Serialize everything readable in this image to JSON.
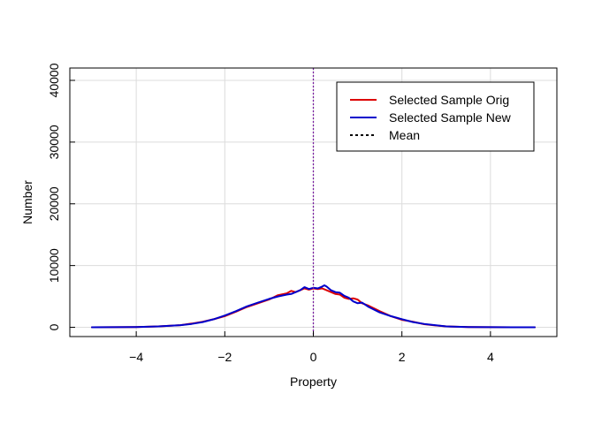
{
  "chart_data": {
    "type": "line",
    "title": "",
    "xlabel": "Property",
    "ylabel": "Number",
    "xlim": [
      -5.5,
      5.5
    ],
    "ylim": [
      -1500,
      42000
    ],
    "x_ticks": [
      -4,
      -2,
      0,
      2,
      4
    ],
    "y_ticks": [
      0,
      10000,
      20000,
      30000,
      40000
    ],
    "x_tick_labels": [
      "−4",
      "−2",
      "0",
      "2",
      "4"
    ],
    "y_tick_labels": [
      "0",
      "10000",
      "20000",
      "30000",
      "40000"
    ],
    "grid": true,
    "legend_position": "top-right",
    "series": [
      {
        "name": "Selected Sample Orig",
        "color": "#dd0000",
        "style": "solid",
        "x": [
          -5,
          -4.5,
          -4,
          -3.5,
          -3,
          -2.75,
          -2.5,
          -2.25,
          -2,
          -1.75,
          -1.5,
          -1.25,
          -1,
          -0.8,
          -0.6,
          -0.5,
          -0.4,
          -0.3,
          -0.2,
          -0.1,
          0,
          0.1,
          0.2,
          0.3,
          0.4,
          0.5,
          0.6,
          0.7,
          0.8,
          0.9,
          1.0,
          1.1,
          1.25,
          1.5,
          1.75,
          2.0,
          2.25,
          2.5,
          2.75,
          3.0,
          3.5,
          4.0,
          4.5,
          5.0
        ],
        "y": [
          0,
          10,
          40,
          150,
          350,
          600,
          900,
          1300,
          1800,
          2500,
          3300,
          3900,
          4500,
          5200,
          5500,
          5900,
          5700,
          6000,
          6300,
          6100,
          6300,
          6200,
          6300,
          6000,
          5700,
          5400,
          5300,
          4800,
          4600,
          4700,
          4500,
          3900,
          3500,
          2600,
          1800,
          1200,
          900,
          500,
          300,
          150,
          50,
          15,
          5,
          0
        ]
      },
      {
        "name": "Selected Sample New",
        "color": "#0000cc",
        "style": "solid",
        "x": [
          -5,
          -4.5,
          -4,
          -3.5,
          -3,
          -2.75,
          -2.5,
          -2.25,
          -2,
          -1.75,
          -1.5,
          -1.25,
          -1,
          -0.8,
          -0.6,
          -0.5,
          -0.4,
          -0.3,
          -0.2,
          -0.1,
          0,
          0.1,
          0.2,
          0.25,
          0.3,
          0.4,
          0.5,
          0.6,
          0.7,
          0.8,
          0.9,
          1.0,
          1.1,
          1.25,
          1.5,
          1.75,
          2.0,
          2.25,
          2.5,
          2.75,
          3.0,
          3.5,
          4.0,
          4.5,
          5.0
        ],
        "y": [
          0,
          10,
          40,
          150,
          350,
          550,
          850,
          1300,
          1900,
          2600,
          3400,
          4000,
          4600,
          5000,
          5300,
          5400,
          5700,
          6000,
          6500,
          6200,
          6400,
          6300,
          6600,
          6800,
          6600,
          6000,
          5700,
          5600,
          5100,
          4800,
          4200,
          3900,
          4000,
          3300,
          2400,
          1800,
          1300,
          850,
          550,
          350,
          150,
          50,
          15,
          5,
          0
        ]
      },
      {
        "name": "Mean",
        "color": "#000000",
        "style": "dotted",
        "line_color": "#7a1fa2",
        "x": [
          0,
          0
        ],
        "y": [
          -1500,
          42000
        ]
      }
    ]
  }
}
